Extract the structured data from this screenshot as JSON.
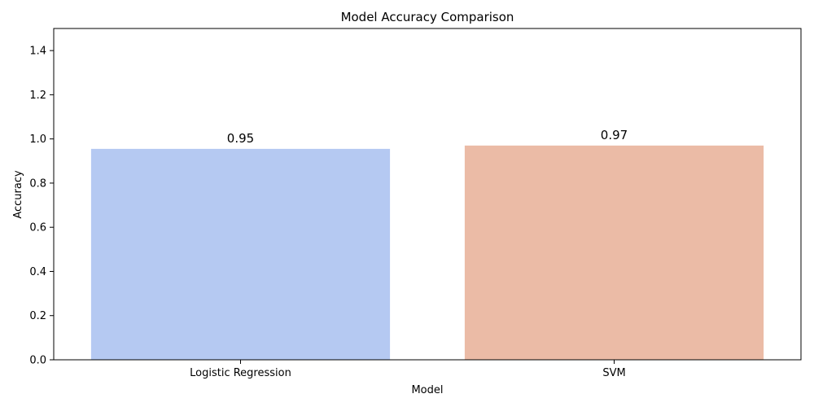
{
  "chart_data": {
    "type": "bar",
    "title": "Model Accuracy Comparison",
    "xlabel": "Model",
    "ylabel": "Accuracy",
    "categories": [
      "Logistic Regression",
      "SVM"
    ],
    "values": [
      0.955,
      0.97
    ],
    "value_labels": [
      "0.95",
      "0.97"
    ],
    "colors": [
      "#b5c9f2",
      "#ebbba6"
    ],
    "ylim": [
      0,
      1.5
    ],
    "yticks": [
      0.0,
      0.2,
      0.4,
      0.6,
      0.8,
      1.0,
      1.2,
      1.4
    ],
    "ytick_labels": [
      "0.0",
      "0.2",
      "0.4",
      "0.6",
      "0.8",
      "1.0",
      "1.2",
      "1.4"
    ],
    "grid": false,
    "legend": "none"
  }
}
